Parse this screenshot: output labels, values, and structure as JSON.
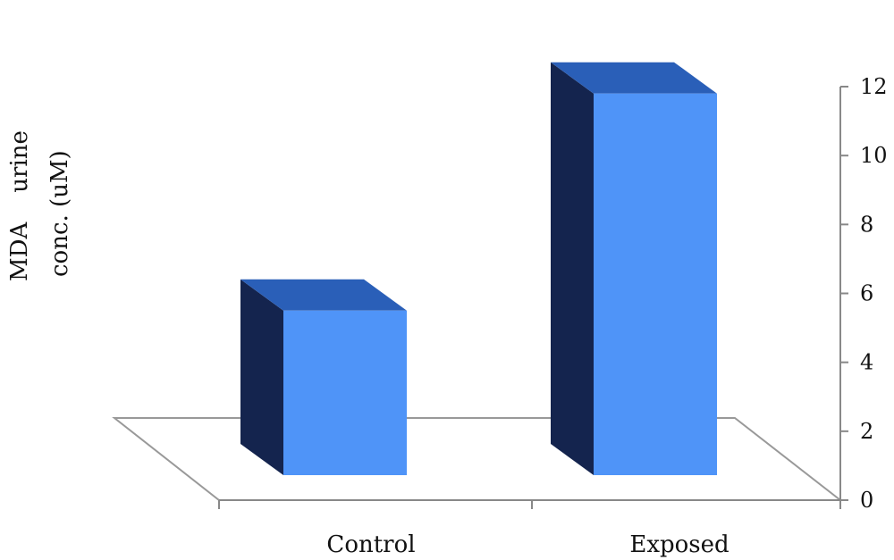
{
  "chart_data": {
    "type": "bar",
    "categories": [
      "Control",
      "Exposed"
    ],
    "values": [
      5.5,
      11.8
    ],
    "ylabel_line1": "MDA    urine",
    "ylabel_line2": "conc. (uM)",
    "ylim": [
      0,
      12
    ],
    "yticks": [
      0,
      2,
      4,
      6,
      8,
      10,
      12
    ],
    "axis_position": "right",
    "grid": false,
    "colors": {
      "bar_front": "#4f94f8",
      "bar_top": "#2a5fb8",
      "bar_side": "#14244e",
      "floor": "#999999",
      "axis": "#888888"
    }
  }
}
